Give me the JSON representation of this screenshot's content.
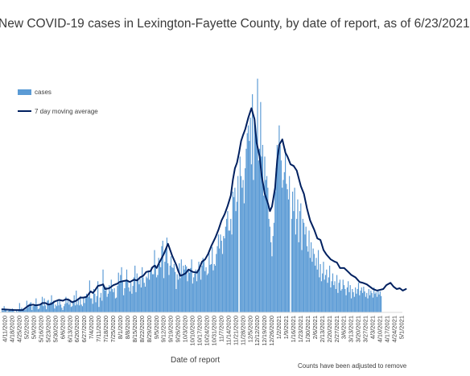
{
  "chart_data": {
    "type": "bar",
    "title": "New COVID-19 cases in Lexington-Fayette County, by date of report, as of 6/23/2021",
    "xlabel": "Date of report",
    "ylabel": "",
    "footnote": "Counts have been adjusted to remove",
    "legend_position": "upper-left",
    "grid": false,
    "ylim": [
      0,
      310
    ],
    "start_date": "2020-04-11",
    "x_tick_labels": [
      "4/11/2020",
      "4/18/2020",
      "4/25/2020",
      "5/2/2020",
      "5/9/2020",
      "5/16/2020",
      "5/23/2020",
      "5/30/2020",
      "6/6/2020",
      "6/13/2020",
      "6/20/2020",
      "6/27/2020",
      "7/4/2020",
      "7/11/2020",
      "7/18/2020",
      "7/25/2020",
      "8/1/2020",
      "8/8/2020",
      "8/15/2020",
      "8/22/2020",
      "8/29/2020",
      "9/5/2020",
      "9/12/2020",
      "9/19/2020",
      "9/26/2020",
      "10/3/2020",
      "10/10/2020",
      "10/17/2020",
      "10/24/2020",
      "10/31/2020",
      "11/7/2020",
      "11/14/2020",
      "11/21/2020",
      "11/28/2020",
      "12/5/2020",
      "12/12/2020",
      "12/19/2020",
      "12/26/2020",
      "1/2/2021",
      "1/9/2021",
      "1/16/2021",
      "1/23/2021",
      "1/30/2021",
      "2/6/2021",
      "2/13/2021",
      "2/20/2021",
      "2/27/2021",
      "3/6/2021",
      "3/13/2021",
      "3/20/2021",
      "3/27/2021",
      "4/3/2021",
      "4/10/2021",
      "4/17/2021",
      "4/24/2021",
      "5/1/2021"
    ],
    "series": [
      {
        "name": "cases",
        "kind": "bar",
        "color": "#5b9bd5",
        "values": [
          3,
          2,
          8,
          4,
          3,
          1,
          2,
          3,
          4,
          2,
          5,
          3,
          1,
          0,
          2,
          1,
          3,
          12,
          3,
          6,
          4,
          5,
          3,
          4,
          15,
          6,
          9,
          12,
          13,
          3,
          8,
          10,
          9,
          18,
          8,
          4,
          5,
          9,
          12,
          20,
          8,
          18,
          9,
          4,
          15,
          16,
          10,
          13,
          22,
          12,
          15,
          5,
          10,
          8,
          15,
          9,
          17,
          10,
          6,
          3,
          8,
          11,
          20,
          12,
          18,
          10,
          16,
          7,
          8,
          15,
          22,
          9,
          28,
          10,
          16,
          9,
          21,
          10,
          8,
          20,
          12,
          19,
          24,
          21,
          20,
          41,
          18,
          18,
          11,
          30,
          24,
          13,
          21,
          40,
          7,
          19,
          25,
          15,
          55,
          31,
          28,
          33,
          20,
          24,
          35,
          27,
          42,
          30,
          26,
          31,
          18,
          19,
          34,
          51,
          37,
          48,
          58,
          39,
          22,
          31,
          42,
          55,
          40,
          32,
          27,
          38,
          24,
          34,
          45,
          60,
          26,
          50,
          42,
          36,
          43,
          32,
          58,
          45,
          38,
          33,
          46,
          44,
          54,
          42,
          52,
          58,
          49,
          49,
          80,
          61,
          45,
          48,
          70,
          62,
          58,
          85,
          92,
          44,
          65,
          81,
          96,
          63,
          48,
          60,
          72,
          58,
          57,
          62,
          52,
          30,
          49,
          42,
          63,
          44,
          68,
          49,
          60,
          55,
          61,
          59,
          40,
          55,
          51,
          57,
          68,
          37,
          45,
          50,
          55,
          40,
          55,
          65,
          58,
          42,
          60,
          70,
          68,
          53,
          58,
          48,
          50,
          76,
          61,
          62,
          84,
          54,
          62,
          60,
          75,
          85,
          100,
          82,
          100,
          92,
          75,
          98,
          95,
          110,
          120,
          130,
          105,
          105,
          120,
          100,
          155,
          148,
          160,
          130,
          142,
          175,
          185,
          200,
          175,
          160,
          170,
          140,
          185,
          210,
          230,
          240,
          220,
          250,
          190,
          280,
          170,
          250,
          240,
          220,
          300,
          195,
          210,
          270,
          200,
          215,
          150,
          200,
          170,
          175,
          160,
          120,
          110,
          90,
          72,
          98,
          115,
          155,
          185,
          215,
          200,
          240,
          215,
          195,
          160,
          170,
          180,
          210,
          165,
          158,
          145,
          175,
          135,
          120,
          155,
          130,
          160,
          100,
          120,
          145,
          90,
          130,
          140,
          80,
          120,
          115,
          100,
          110,
          85,
          78,
          105,
          70,
          90,
          65,
          82,
          75,
          60,
          70,
          55,
          80,
          45,
          62,
          40,
          50,
          65,
          42,
          48,
          55,
          38,
          45,
          60,
          32,
          40,
          50,
          35,
          40,
          30,
          48,
          25,
          38,
          42,
          28,
          30,
          42,
          35,
          30,
          22,
          32,
          40,
          26,
          35,
          18,
          30,
          26,
          20,
          32,
          24,
          30,
          38,
          22,
          28,
          32,
          25,
          33,
          27,
          20,
          25,
          18,
          30,
          22,
          28,
          25,
          19,
          32,
          24,
          26,
          20,
          29,
          23,
          27,
          21
        ],
        "annotations": [
          {
            "date": "2020-11-27",
            "value": 0
          },
          {
            "date": "2021-01-16",
            "value": 0
          }
        ]
      },
      {
        "name": "7 day moving average",
        "kind": "line",
        "color": "#002060",
        "x": [
          "2020-04-11",
          "2020-04-23",
          "2020-05-01",
          "2020-05-07",
          "2020-05-11",
          "2020-05-14",
          "2020-05-18",
          "2020-05-20",
          "2020-05-23",
          "2020-05-26",
          "2020-05-29",
          "2020-06-01",
          "2020-06-05",
          "2020-06-09",
          "2020-06-12",
          "2020-06-15",
          "2020-06-18",
          "2020-06-22",
          "2020-06-26",
          "2020-06-29",
          "2020-07-02",
          "2020-07-06",
          "2020-07-08",
          "2020-07-10",
          "2020-07-13",
          "2020-07-16",
          "2020-07-18",
          "2020-07-20",
          "2020-07-24",
          "2020-07-28",
          "2020-08-01",
          "2020-08-03",
          "2020-08-06",
          "2020-08-10",
          "2020-08-13",
          "2020-08-17",
          "2020-08-20",
          "2020-08-23",
          "2020-08-26",
          "2020-08-29",
          "2020-09-02",
          "2020-09-04",
          "2020-09-06",
          "2020-09-08",
          "2020-09-11",
          "2020-09-15",
          "2020-09-19",
          "2020-09-23",
          "2020-09-27",
          "2020-09-29",
          "2020-10-01",
          "2020-10-03",
          "2020-10-06",
          "2020-10-09",
          "2020-10-13",
          "2020-10-17",
          "2020-10-19",
          "2020-10-22",
          "2020-10-25",
          "2020-10-28",
          "2020-10-31",
          "2020-11-04",
          "2020-11-07",
          "2020-11-10",
          "2020-11-13",
          "2020-11-16",
          "2020-11-19",
          "2020-11-21",
          "2020-11-23",
          "2020-11-25",
          "2020-11-27",
          "2020-11-29",
          "2020-12-01",
          "2020-12-03",
          "2020-12-06",
          "2020-12-09",
          "2020-12-12",
          "2020-12-14",
          "2020-12-17",
          "2020-12-19",
          "2020-12-22",
          "2020-12-25",
          "2020-12-27",
          "2020-12-29",
          "2021-01-01",
          "2021-01-03",
          "2021-01-05",
          "2021-01-08",
          "2021-01-11",
          "2021-01-13",
          "2021-01-16",
          "2021-01-19",
          "2021-01-22",
          "2021-01-26",
          "2021-01-29",
          "2021-02-01",
          "2021-02-04",
          "2021-02-08",
          "2021-02-11",
          "2021-02-14",
          "2021-02-17",
          "2021-02-20",
          "2021-02-24",
          "2021-02-28",
          "2021-03-02",
          "2021-03-05",
          "2021-03-09",
          "2021-03-13",
          "2021-03-16",
          "2021-03-20",
          "2021-03-24",
          "2021-03-27",
          "2021-03-31",
          "2021-04-03",
          "2021-04-06",
          "2021-04-10",
          "2021-04-13",
          "2021-04-16",
          "2021-04-19",
          "2021-04-23",
          "2021-04-26",
          "2021-04-29",
          "2021-05-02",
          "2021-05-05",
          "2021-05-08"
        ],
        "values": [
          4,
          3,
          3,
          9,
          10,
          9,
          10,
          12,
          12,
          10,
          11,
          14,
          16,
          15,
          17,
          16,
          13,
          15,
          19,
          19,
          20,
          27,
          25,
          28,
          34,
          35,
          36,
          30,
          31,
          35,
          37,
          39,
          40,
          41,
          39,
          42,
          41,
          45,
          47,
          52,
          53,
          58,
          60,
          57,
          65,
          75,
          88,
          73,
          61,
          53,
          47,
          48,
          50,
          55,
          52,
          51,
          55,
          65,
          68,
          75,
          85,
          96,
          106,
          118,
          126,
          137,
          150,
          170,
          185,
          192,
          205,
          220,
          228,
          235,
          250,
          262,
          248,
          218,
          200,
          175,
          152,
          140,
          130,
          136,
          160,
          195,
          215,
          222,
          205,
          200,
          190,
          188,
          182,
          162,
          152,
          133,
          118,
          106,
          95,
          93,
          80,
          74,
          68,
          65,
          64,
          57,
          57,
          52,
          48,
          45,
          39,
          38,
          36,
          33,
          30,
          28,
          29,
          30,
          35,
          38,
          33,
          30,
          31,
          28,
          30
        ]
      }
    ]
  }
}
